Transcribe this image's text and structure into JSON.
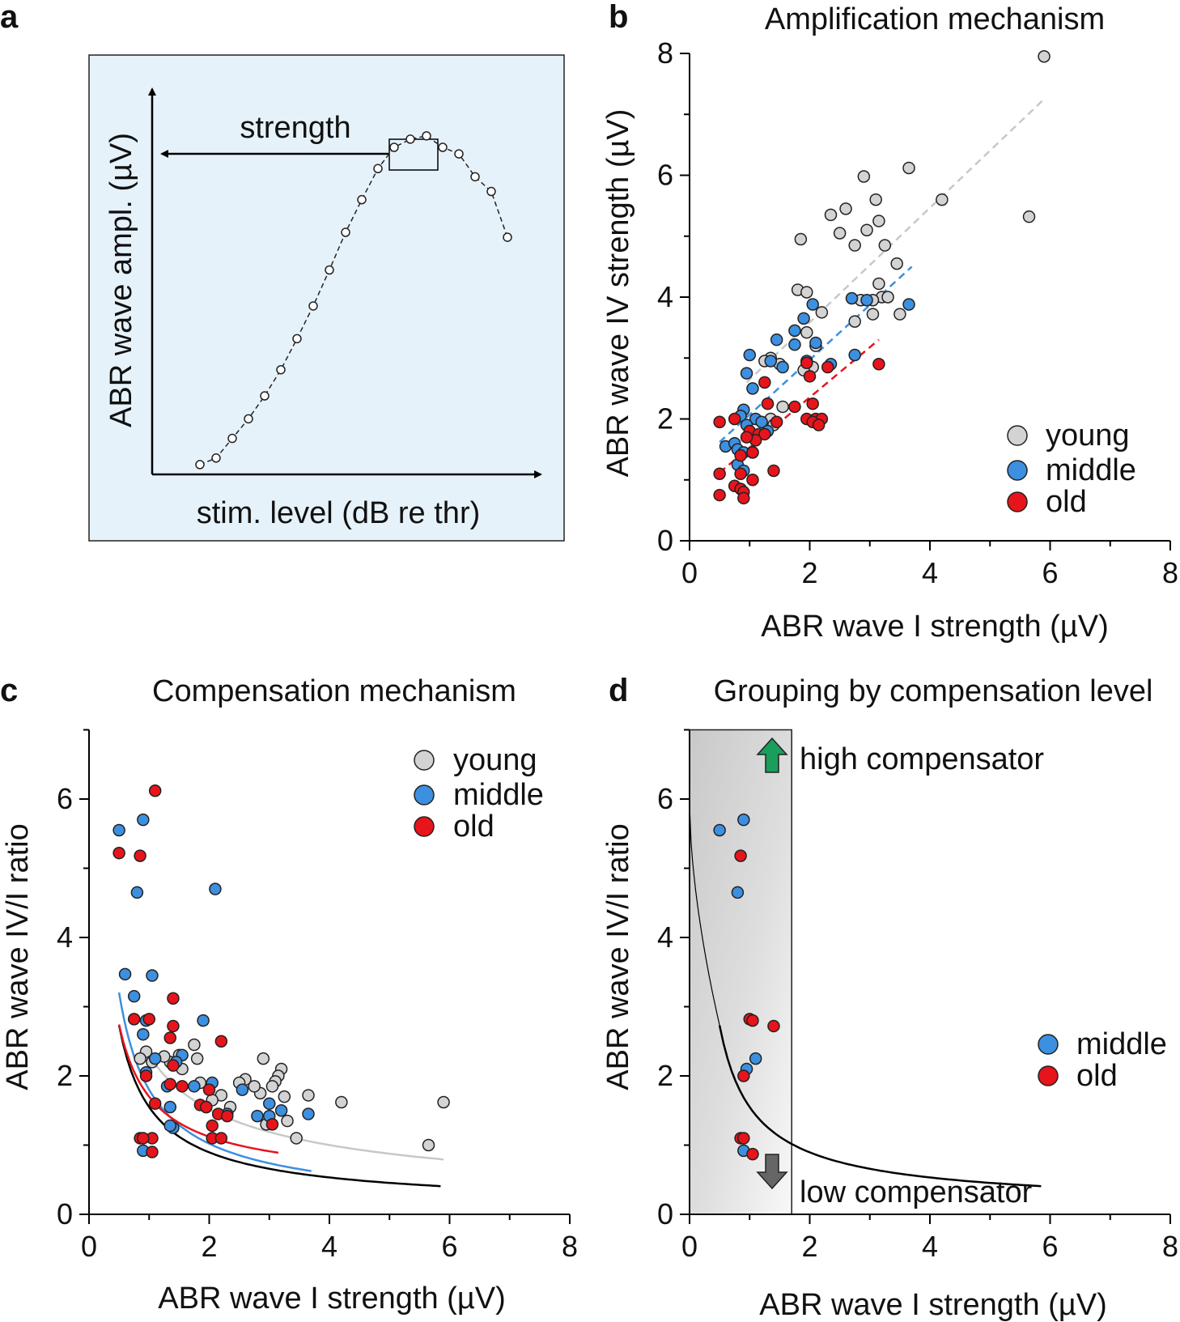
{
  "panels": {
    "a": {
      "letter": "a",
      "ylabel": "ABR wave ampl. (µV)",
      "xlabel": "stim. level (dB re thr)",
      "annotation": "strength",
      "background": "#e6f2fa",
      "curve": [
        0.6,
        1.0,
        2.2,
        3.4,
        4.8,
        6.4,
        8.3,
        10.3,
        12.5,
        14.8,
        16.8,
        18.7,
        20.0,
        20.5,
        20.7,
        20.0,
        19.6,
        18.2,
        17.3,
        14.5
      ]
    },
    "b": {
      "letter": "b",
      "title": "Amplification mechanism",
      "xlabel": "ABR wave I strength (µV)",
      "ylabel": "ABR wave IV strength (µV)",
      "xticks": [
        "0",
        "2",
        "4",
        "6",
        "8"
      ],
      "yticks": [
        "0",
        "2",
        "4",
        "6",
        "8"
      ],
      "legend": [
        "young",
        "middle",
        "old"
      ]
    },
    "c": {
      "letter": "c",
      "title": "Compensation mechanism",
      "xlabel": "ABR wave I strength (µV)",
      "ylabel": "ABR wave IV/I ratio",
      "xticks": [
        "0",
        "2",
        "4",
        "6",
        "8"
      ],
      "yticks": [
        "0",
        "2",
        "4",
        "6"
      ],
      "legend": [
        "young",
        "middle",
        "old"
      ]
    },
    "d": {
      "letter": "d",
      "title": "Grouping by compensation level",
      "xlabel": "ABR wave I strength (µV)",
      "ylabel": "ABR wave IV/I ratio",
      "xticks": [
        "0",
        "2",
        "4",
        "6",
        "8"
      ],
      "yticks": [
        "0",
        "2",
        "4",
        "6"
      ],
      "legend": [
        "middle",
        "old"
      ],
      "high_label": "high compensator",
      "low_label": "low compensator",
      "shaded_xrange": [
        0,
        1.7
      ]
    }
  },
  "colors": {
    "young": "#d3d3d3",
    "middle": "#3d8fe0",
    "old": "#e8141b",
    "black_fit": "#000000",
    "young_fit": "#c8c8c8",
    "arrow_up": "#1a9e5c",
    "arrow_down": "#666666"
  },
  "chart_data": [
    {
      "panel": "b",
      "type": "scatter",
      "title": "Amplification mechanism",
      "xlabel": "ABR wave I strength (µV)",
      "ylabel": "ABR wave IV strength (µV)",
      "xlim": [
        0,
        8
      ],
      "ylim": [
        0,
        8
      ],
      "series": [
        {
          "name": "young",
          "points": [
            [
              5.9,
              7.95
            ],
            [
              3.65,
              6.12
            ],
            [
              2.9,
              5.98
            ],
            [
              4.2,
              5.6
            ],
            [
              3.1,
              5.6
            ],
            [
              5.65,
              5.32
            ],
            [
              2.35,
              5.35
            ],
            [
              2.6,
              5.45
            ],
            [
              3.15,
              5.25
            ],
            [
              2.95,
              5.1
            ],
            [
              2.5,
              5.05
            ],
            [
              1.85,
              4.95
            ],
            [
              2.75,
              4.85
            ],
            [
              3.25,
              4.85
            ],
            [
              3.45,
              4.55
            ],
            [
              3.15,
              4.22
            ],
            [
              1.8,
              4.12
            ],
            [
              1.95,
              4.08
            ],
            [
              3.2,
              4.0
            ],
            [
              3.3,
              4.0
            ],
            [
              3.05,
              3.95
            ],
            [
              2.85,
              3.95
            ],
            [
              3.5,
              3.72
            ],
            [
              3.05,
              3.72
            ],
            [
              2.2,
              3.75
            ],
            [
              2.75,
              3.6
            ],
            [
              1.95,
              3.42
            ],
            [
              2.1,
              3.2
            ],
            [
              1.35,
              3.0
            ],
            [
              1.25,
              2.95
            ],
            [
              1.5,
              2.9
            ],
            [
              2.05,
              2.85
            ],
            [
              1.9,
              2.8
            ],
            [
              1.55,
              2.2
            ],
            [
              1.35,
              2.0
            ],
            [
              1.4,
              1.9
            ]
          ]
        },
        {
          "name": "middle",
          "points": [
            [
              3.65,
              3.88
            ],
            [
              2.95,
              3.95
            ],
            [
              2.7,
              3.98
            ],
            [
              2.05,
              3.88
            ],
            [
              1.9,
              3.65
            ],
            [
              1.75,
              3.45
            ],
            [
              1.45,
              3.3
            ],
            [
              1.75,
              3.22
            ],
            [
              2.1,
              3.25
            ],
            [
              1.0,
              3.05
            ],
            [
              2.75,
              3.05
            ],
            [
              1.35,
              2.95
            ],
            [
              1.55,
              2.85
            ],
            [
              1.95,
              2.95
            ],
            [
              2.35,
              2.9
            ],
            [
              0.95,
              2.75
            ],
            [
              1.05,
              2.5
            ],
            [
              0.9,
              2.15
            ],
            [
              0.85,
              2.05
            ],
            [
              1.1,
              2.0
            ],
            [
              0.95,
              1.9
            ],
            [
              1.2,
              1.95
            ],
            [
              1.3,
              1.8
            ],
            [
              0.6,
              1.55
            ],
            [
              0.75,
              1.6
            ],
            [
              0.8,
              1.5
            ],
            [
              0.9,
              1.45
            ],
            [
              1.05,
              1.45
            ],
            [
              0.8,
              1.25
            ],
            [
              0.9,
              1.15
            ]
          ]
        },
        {
          "name": "old",
          "points": [
            [
              1.25,
              2.6
            ],
            [
              2.3,
              2.85
            ],
            [
              3.15,
              2.9
            ],
            [
              1.95,
              2.92
            ],
            [
              2.0,
              2.7
            ],
            [
              1.75,
              2.2
            ],
            [
              2.05,
              2.25
            ],
            [
              1.3,
              2.25
            ],
            [
              1.95,
              2.0
            ],
            [
              2.1,
              2.0
            ],
            [
              2.2,
              2.0
            ],
            [
              2.05,
              1.95
            ],
            [
              2.15,
              1.9
            ],
            [
              1.45,
              1.95
            ],
            [
              1.0,
              1.8
            ],
            [
              1.15,
              1.75
            ],
            [
              1.25,
              1.75
            ],
            [
              1.1,
              1.65
            ],
            [
              0.5,
              1.95
            ],
            [
              0.75,
              2.0
            ],
            [
              0.95,
              1.7
            ],
            [
              1.05,
              1.45
            ],
            [
              0.85,
              1.4
            ],
            [
              1.4,
              1.15
            ],
            [
              0.5,
              1.1
            ],
            [
              0.85,
              1.1
            ],
            [
              1.05,
              1.0
            ],
            [
              0.75,
              0.9
            ],
            [
              0.85,
              0.85
            ],
            [
              0.9,
              0.8
            ],
            [
              0.5,
              0.75
            ],
            [
              0.9,
              0.7
            ]
          ]
        }
      ],
      "fits": [
        {
          "name": "young",
          "x": [
            0.95,
            5.9
          ],
          "y": [
            2.6,
            7.25
          ]
        },
        {
          "name": "middle",
          "x": [
            0.5,
            3.7
          ],
          "y": [
            1.62,
            4.5
          ]
        },
        {
          "name": "old",
          "x": [
            0.5,
            3.15
          ],
          "y": [
            1.12,
            3.3
          ]
        }
      ]
    },
    {
      "panel": "c",
      "type": "scatter",
      "title": "Compensation mechanism",
      "xlabel": "ABR wave I strength (µV)",
      "ylabel": "ABR wave IV/I ratio",
      "xlim": [
        0,
        8
      ],
      "ylim": [
        0,
        7
      ],
      "series": [
        {
          "name": "young",
          "points": [
            [
              5.9,
              1.62
            ],
            [
              5.65,
              1.0
            ],
            [
              4.2,
              1.62
            ],
            [
              3.65,
              1.72
            ],
            [
              3.45,
              1.1
            ],
            [
              3.3,
              1.35
            ],
            [
              3.25,
              1.7
            ],
            [
              3.2,
              2.1
            ],
            [
              3.15,
              2.0
            ],
            [
              3.1,
              1.92
            ],
            [
              3.05,
              1.85
            ],
            [
              2.95,
              1.3
            ],
            [
              2.9,
              2.25
            ],
            [
              2.85,
              1.75
            ],
            [
              2.75,
              1.85
            ],
            [
              2.6,
              1.95
            ],
            [
              2.5,
              1.9
            ],
            [
              2.35,
              1.55
            ],
            [
              2.2,
              1.72
            ],
            [
              2.05,
              1.65
            ],
            [
              1.95,
              1.55
            ],
            [
              1.85,
              1.9
            ],
            [
              1.8,
              2.25
            ],
            [
              1.75,
              2.45
            ],
            [
              1.55,
              2.1
            ],
            [
              1.5,
              2.3
            ],
            [
              1.35,
              2.2
            ],
            [
              1.25,
              2.28
            ],
            [
              1.05,
              2.2
            ],
            [
              0.95,
              2.35
            ],
            [
              0.85,
              2.25
            ]
          ]
        },
        {
          "name": "middle",
          "points": [
            [
              0.5,
              5.55
            ],
            [
              0.9,
              5.7
            ],
            [
              0.8,
              4.65
            ],
            [
              2.1,
              4.7
            ],
            [
              0.6,
              3.47
            ],
            [
              1.05,
              3.45
            ],
            [
              0.75,
              3.15
            ],
            [
              0.95,
              2.8
            ],
            [
              0.9,
              2.6
            ],
            [
              1.9,
              2.8
            ],
            [
              1.55,
              2.3
            ],
            [
              1.45,
              2.2
            ],
            [
              1.1,
              2.25
            ],
            [
              0.95,
              2.05
            ],
            [
              1.3,
              1.85
            ],
            [
              1.75,
              1.85
            ],
            [
              2.05,
              1.9
            ],
            [
              2.3,
              1.45
            ],
            [
              2.55,
              1.8
            ],
            [
              2.8,
              1.42
            ],
            [
              3.0,
              1.6
            ],
            [
              3.2,
              1.5
            ],
            [
              3.65,
              1.45
            ],
            [
              1.35,
              1.55
            ],
            [
              1.4,
              1.25
            ],
            [
              1.35,
              1.28
            ],
            [
              0.9,
              0.92
            ],
            [
              3.0,
              1.42
            ]
          ]
        },
        {
          "name": "old",
          "points": [
            [
              1.1,
              6.12
            ],
            [
              0.5,
              5.22
            ],
            [
              0.85,
              5.18
            ],
            [
              1.4,
              3.12
            ],
            [
              0.75,
              2.82
            ],
            [
              1.0,
              2.82
            ],
            [
              1.4,
              2.72
            ],
            [
              1.35,
              2.55
            ],
            [
              2.2,
              2.5
            ],
            [
              1.4,
              2.15
            ],
            [
              0.95,
              2.0
            ],
            [
              2.0,
              1.8
            ],
            [
              1.1,
              1.6
            ],
            [
              1.35,
              1.88
            ],
            [
              1.55,
              1.85
            ],
            [
              1.85,
              1.58
            ],
            [
              1.95,
              1.55
            ],
            [
              2.15,
              1.45
            ],
            [
              2.3,
              1.42
            ],
            [
              2.05,
              1.28
            ],
            [
              1.05,
              1.1
            ],
            [
              0.85,
              1.1
            ],
            [
              0.9,
              1.1
            ],
            [
              1.05,
              0.9
            ],
            [
              2.05,
              1.1
            ],
            [
              2.2,
              1.1
            ],
            [
              3.05,
              1.3
            ]
          ]
        }
      ],
      "fits": [
        {
          "name": "young",
          "x_range": [
            1.0,
            5.9
          ],
          "a": 2.3,
          "b": 0.0,
          "c": 0.6
        },
        {
          "name": "all",
          "x_range": [
            0.5,
            5.85
          ],
          "a": 1.47,
          "b": 0.08,
          "c": 0.85
        },
        {
          "name": "middle",
          "x_range": [
            0.5,
            3.7
          ],
          "a": 1.75,
          "b": 0.05,
          "c": 0.85
        },
        {
          "name": "old",
          "x_range": [
            0.5,
            3.15
          ],
          "a": 1.3,
          "b": 0.4,
          "c": 0.85
        }
      ]
    },
    {
      "panel": "d",
      "type": "scatter",
      "title": "Grouping by compensation level",
      "xlabel": "ABR wave I strength (µV)",
      "ylabel": "ABR wave IV/I ratio",
      "xlim": [
        0,
        8
      ],
      "ylim": [
        0,
        7
      ],
      "series": [
        {
          "name": "middle",
          "points": [
            [
              0.5,
              5.55
            ],
            [
              0.9,
              5.7
            ],
            [
              0.8,
              4.65
            ],
            [
              1.1,
              2.25
            ],
            [
              0.95,
              2.1
            ],
            [
              0.9,
              0.92
            ]
          ]
        },
        {
          "name": "old",
          "points": [
            [
              0.85,
              5.18
            ],
            [
              1.0,
              2.82
            ],
            [
              1.05,
              2.8
            ],
            [
              1.4,
              2.72
            ],
            [
              0.9,
              2.0
            ],
            [
              0.85,
              1.1
            ],
            [
              0.9,
              1.1
            ],
            [
              1.05,
              0.87
            ]
          ]
        }
      ],
      "fits": [
        {
          "name": "all",
          "x_range": [
            0.5,
            5.85
          ],
          "a": 1.47,
          "b": 0.08,
          "c": 0.85,
          "extension_to": 0.0,
          "extension_top": 5.9
        }
      ],
      "annotations": [
        "high compensator",
        "low compensator"
      ]
    }
  ]
}
